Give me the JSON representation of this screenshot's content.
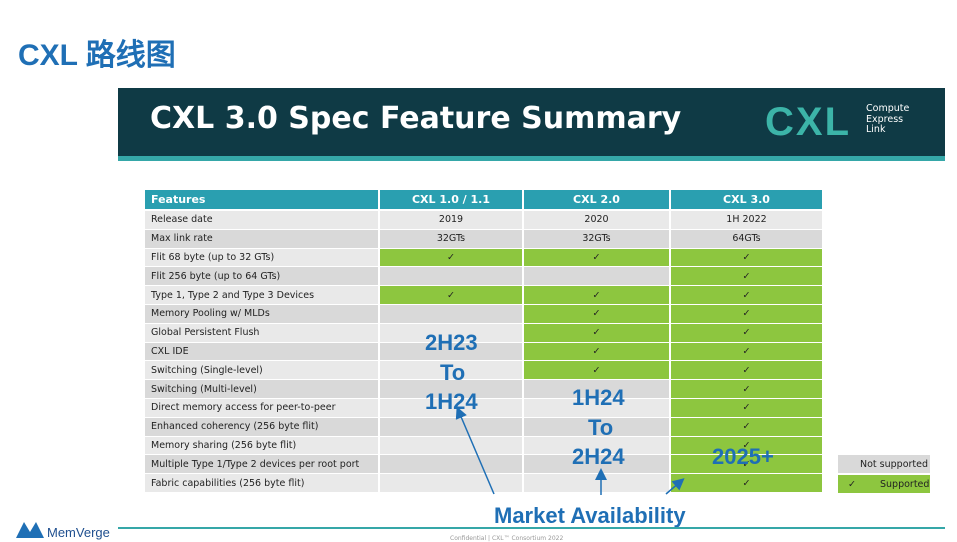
{
  "slide": {
    "title": "CXL 路线图"
  },
  "banner": {
    "title": "CXL 3.0 Spec Feature Summary",
    "logo": "CXL",
    "logo_tagline": [
      "Compute",
      "Express",
      "Link"
    ]
  },
  "table": {
    "header": [
      "Features",
      "CXL 1.0 / 1.1",
      "CXL 2.0",
      "CXL 3.0"
    ],
    "rows": [
      [
        "Release date",
        "2019",
        "2020",
        "1H 2022"
      ],
      [
        "Max link rate",
        "32GTs",
        "32GTs",
        "64GTs"
      ],
      [
        "Flit 68 byte (up to 32 GTs)",
        "✓",
        "✓",
        "✓"
      ],
      [
        "Flit 256 byte (up to 64 GTs)",
        null,
        null,
        "✓"
      ],
      [
        "Type 1, Type 2 and Type 3 Devices",
        "✓",
        "✓",
        "✓"
      ],
      [
        "Memory Pooling w/ MLDs",
        null,
        "✓",
        "✓"
      ],
      [
        "Global Persistent Flush",
        null,
        "✓",
        "✓"
      ],
      [
        "CXL IDE",
        null,
        "✓",
        "✓"
      ],
      [
        "Switching (Single-level)",
        null,
        "✓",
        "✓"
      ],
      [
        "Switching (Multi-level)",
        null,
        null,
        "✓"
      ],
      [
        "Direct memory access for peer-to-peer",
        null,
        null,
        "✓"
      ],
      [
        "Enhanced coherency (256 byte flit)",
        null,
        null,
        "✓"
      ],
      [
        "Memory sharing (256 byte flit)",
        null,
        null,
        "✓"
      ],
      [
        "Multiple Type 1/Type 2 devices per root port",
        null,
        null,
        "✓"
      ],
      [
        "Fabric capabilities (256 byte flit)",
        null,
        null,
        "✓"
      ]
    ]
  },
  "legend": {
    "not_supported": "Not supported",
    "supported": {
      "mark": "✓",
      "label": "Supported"
    }
  },
  "annotations": [
    [
      "2H23",
      "To",
      "1H24"
    ],
    [
      "1H24",
      "To",
      "2H24"
    ],
    [
      "2025+"
    ]
  ],
  "market_label": "Market Availability",
  "footer": {
    "brand": "MemVerge",
    "note": "Confidential | CXL™ Consortium 2022"
  }
}
